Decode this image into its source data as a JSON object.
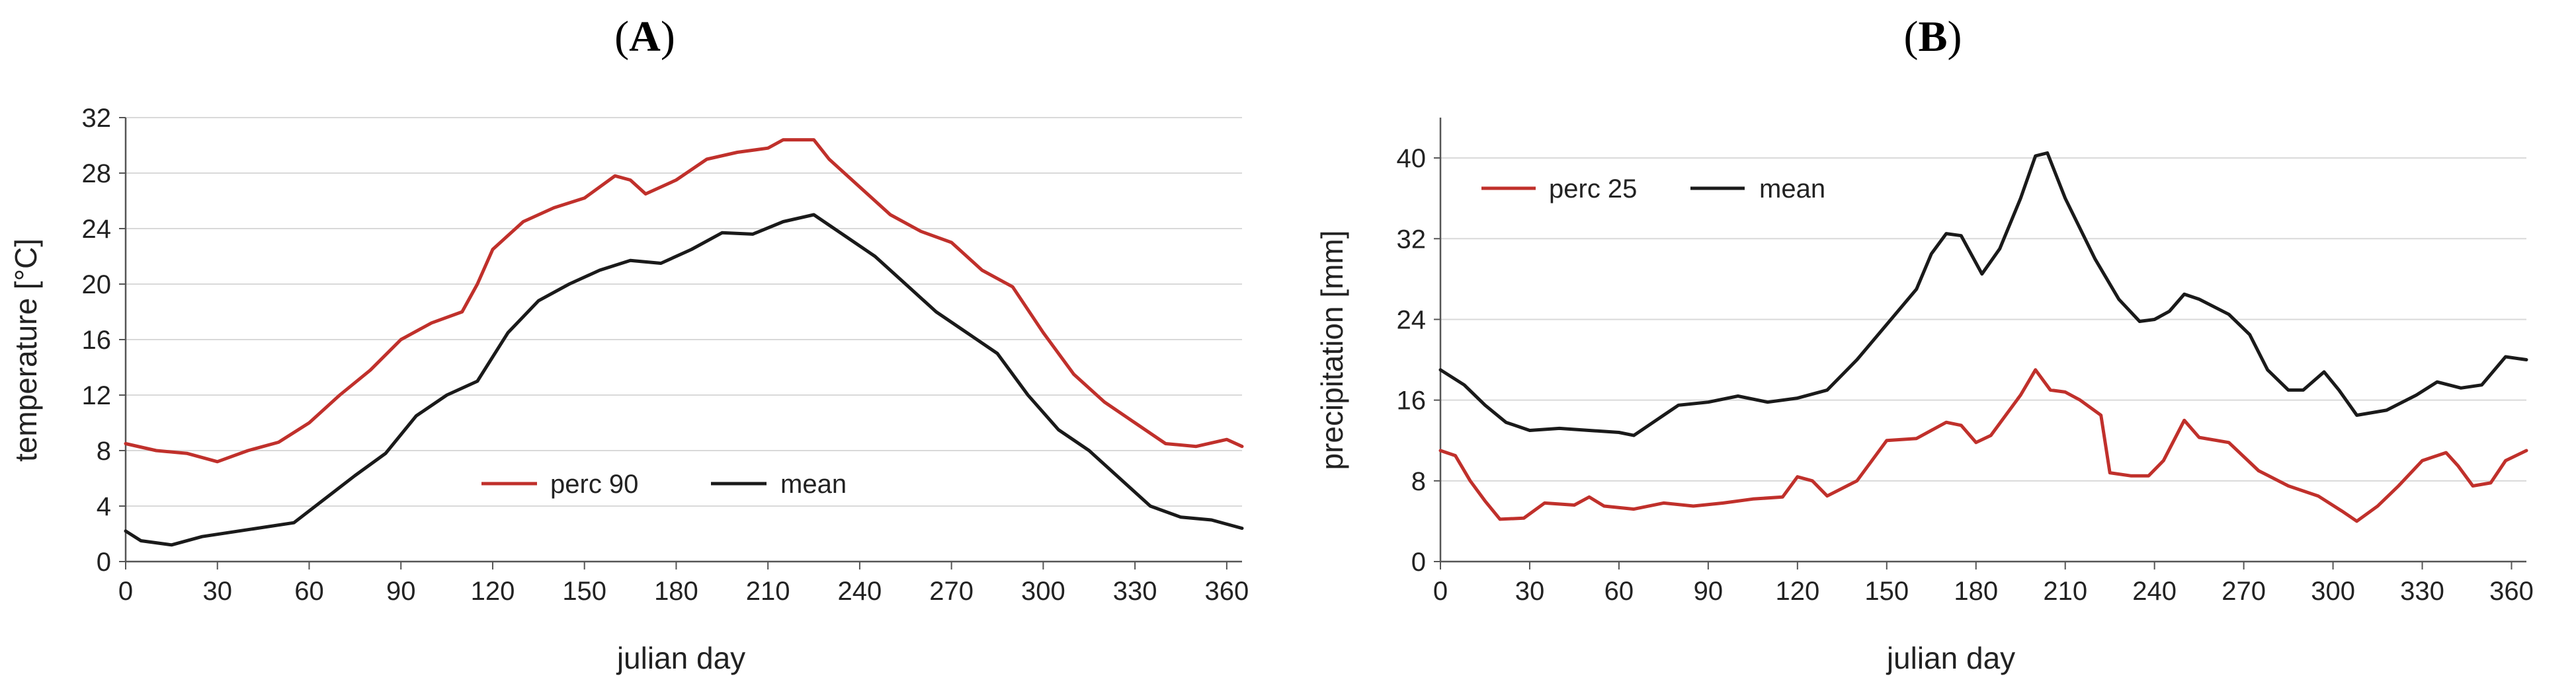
{
  "chart_data": [
    {
      "type": "line",
      "panel_label": "A",
      "xlabel": "julian day",
      "ylabel": "temperature [°C]",
      "xlim": [
        0,
        365
      ],
      "ylim": [
        0,
        32
      ],
      "xticks": [
        0,
        30,
        60,
        90,
        120,
        150,
        180,
        210,
        240,
        270,
        300,
        330,
        360
      ],
      "yticks": [
        0,
        4,
        8,
        12,
        16,
        20,
        24,
        28,
        32
      ],
      "grid": "horizontal",
      "legend_position": "lower-center",
      "series": [
        {
          "name": "perc 90",
          "color": "#c0302b",
          "points": [
            [
              0,
              8.5
            ],
            [
              10,
              8.0
            ],
            [
              20,
              7.8
            ],
            [
              30,
              7.2
            ],
            [
              40,
              8.0
            ],
            [
              50,
              8.6
            ],
            [
              60,
              10.0
            ],
            [
              70,
              12.0
            ],
            [
              80,
              13.8
            ],
            [
              90,
              16.0
            ],
            [
              100,
              17.2
            ],
            [
              110,
              18.0
            ],
            [
              115,
              20.0
            ],
            [
              120,
              22.5
            ],
            [
              130,
              24.5
            ],
            [
              140,
              25.5
            ],
            [
              150,
              26.2
            ],
            [
              160,
              27.8
            ],
            [
              165,
              27.5
            ],
            [
              170,
              26.5
            ],
            [
              180,
              27.5
            ],
            [
              190,
              29.0
            ],
            [
              200,
              29.5
            ],
            [
              210,
              29.8
            ],
            [
              215,
              30.4
            ],
            [
              225,
              30.4
            ],
            [
              230,
              29.0
            ],
            [
              240,
              27.0
            ],
            [
              250,
              25.0
            ],
            [
              260,
              23.8
            ],
            [
              270,
              23.0
            ],
            [
              280,
              21.0
            ],
            [
              290,
              19.8
            ],
            [
              300,
              16.5
            ],
            [
              310,
              13.5
            ],
            [
              320,
              11.5
            ],
            [
              330,
              10.0
            ],
            [
              340,
              8.5
            ],
            [
              350,
              8.3
            ],
            [
              360,
              8.8
            ],
            [
              365,
              8.3
            ]
          ]
        },
        {
          "name": "mean",
          "color": "#1a1a1a",
          "points": [
            [
              0,
              2.2
            ],
            [
              5,
              1.5
            ],
            [
              15,
              1.2
            ],
            [
              25,
              1.8
            ],
            [
              40,
              2.3
            ],
            [
              55,
              2.8
            ],
            [
              65,
              4.5
            ],
            [
              75,
              6.2
            ],
            [
              85,
              7.8
            ],
            [
              95,
              10.5
            ],
            [
              105,
              12.0
            ],
            [
              115,
              13.0
            ],
            [
              125,
              16.5
            ],
            [
              135,
              18.8
            ],
            [
              145,
              20.0
            ],
            [
              155,
              21.0
            ],
            [
              165,
              21.7
            ],
            [
              175,
              21.5
            ],
            [
              185,
              22.5
            ],
            [
              195,
              23.7
            ],
            [
              205,
              23.6
            ],
            [
              215,
              24.5
            ],
            [
              225,
              25.0
            ],
            [
              235,
              23.5
            ],
            [
              245,
              22.0
            ],
            [
              255,
              20.0
            ],
            [
              265,
              18.0
            ],
            [
              275,
              16.5
            ],
            [
              285,
              15.0
            ],
            [
              295,
              12.0
            ],
            [
              305,
              9.5
            ],
            [
              315,
              8.0
            ],
            [
              325,
              6.0
            ],
            [
              335,
              4.0
            ],
            [
              345,
              3.2
            ],
            [
              355,
              3.0
            ],
            [
              365,
              2.4
            ]
          ]
        }
      ]
    },
    {
      "type": "line",
      "panel_label": "B",
      "xlabel": "julian day",
      "ylabel": "precipitation [mm]",
      "xlim": [
        0,
        365
      ],
      "ylim": [
        0,
        44
      ],
      "xticks": [
        0,
        30,
        60,
        90,
        120,
        150,
        180,
        210,
        240,
        270,
        300,
        330,
        360
      ],
      "yticks": [
        0,
        8,
        16,
        24,
        32,
        40
      ],
      "grid": "horizontal",
      "legend_position": "top-left",
      "series": [
        {
          "name": "perc 25",
          "color": "#c0302b",
          "points": [
            [
              0,
              11.0
            ],
            [
              5,
              10.5
            ],
            [
              10,
              8.0
            ],
            [
              15,
              6.0
            ],
            [
              20,
              4.2
            ],
            [
              28,
              4.3
            ],
            [
              35,
              5.8
            ],
            [
              45,
              5.6
            ],
            [
              50,
              6.4
            ],
            [
              55,
              5.5
            ],
            [
              65,
              5.2
            ],
            [
              75,
              5.8
            ],
            [
              85,
              5.5
            ],
            [
              95,
              5.8
            ],
            [
              105,
              6.2
            ],
            [
              115,
              6.4
            ],
            [
              120,
              8.4
            ],
            [
              125,
              8.0
            ],
            [
              130,
              6.5
            ],
            [
              140,
              8.0
            ],
            [
              145,
              10.0
            ],
            [
              150,
              12.0
            ],
            [
              160,
              12.2
            ],
            [
              170,
              13.8
            ],
            [
              175,
              13.5
            ],
            [
              180,
              11.8
            ],
            [
              185,
              12.5
            ],
            [
              195,
              16.5
            ],
            [
              200,
              19.0
            ],
            [
              205,
              17.0
            ],
            [
              210,
              16.8
            ],
            [
              215,
              16.0
            ],
            [
              222,
              14.5
            ],
            [
              225,
              8.8
            ],
            [
              232,
              8.5
            ],
            [
              238,
              8.5
            ],
            [
              243,
              10.0
            ],
            [
              250,
              14.0
            ],
            [
              255,
              12.3
            ],
            [
              265,
              11.8
            ],
            [
              275,
              9.0
            ],
            [
              285,
              7.5
            ],
            [
              295,
              6.5
            ],
            [
              303,
              5.0
            ],
            [
              308,
              4.0
            ],
            [
              315,
              5.5
            ],
            [
              322,
              7.5
            ],
            [
              330,
              10.0
            ],
            [
              338,
              10.8
            ],
            [
              342,
              9.5
            ],
            [
              347,
              7.5
            ],
            [
              353,
              7.8
            ],
            [
              358,
              10.0
            ],
            [
              365,
              11.0
            ]
          ]
        },
        {
          "name": "mean",
          "color": "#1a1a1a",
          "points": [
            [
              0,
              19.0
            ],
            [
              8,
              17.5
            ],
            [
              15,
              15.5
            ],
            [
              22,
              13.8
            ],
            [
              30,
              13.0
            ],
            [
              40,
              13.2
            ],
            [
              50,
              13.0
            ],
            [
              60,
              12.8
            ],
            [
              65,
              12.5
            ],
            [
              75,
              14.5
            ],
            [
              80,
              15.5
            ],
            [
              90,
              15.8
            ],
            [
              100,
              16.4
            ],
            [
              110,
              15.8
            ],
            [
              120,
              16.2
            ],
            [
              130,
              17.0
            ],
            [
              140,
              20.0
            ],
            [
              150,
              23.5
            ],
            [
              160,
              27.0
            ],
            [
              165,
              30.5
            ],
            [
              170,
              32.5
            ],
            [
              175,
              32.3
            ],
            [
              182,
              28.5
            ],
            [
              188,
              31.0
            ],
            [
              195,
              36.0
            ],
            [
              200,
              40.2
            ],
            [
              204,
              40.5
            ],
            [
              210,
              36.0
            ],
            [
              220,
              30.0
            ],
            [
              228,
              26.0
            ],
            [
              235,
              23.8
            ],
            [
              240,
              24.0
            ],
            [
              245,
              24.8
            ],
            [
              250,
              26.5
            ],
            [
              255,
              26.0
            ],
            [
              265,
              24.5
            ],
            [
              272,
              22.5
            ],
            [
              278,
              19.0
            ],
            [
              285,
              17.0
            ],
            [
              290,
              17.0
            ],
            [
              297,
              18.8
            ],
            [
              302,
              17.0
            ],
            [
              308,
              14.5
            ],
            [
              318,
              15.0
            ],
            [
              328,
              16.5
            ],
            [
              335,
              17.8
            ],
            [
              343,
              17.2
            ],
            [
              350,
              17.5
            ],
            [
              358,
              20.3
            ],
            [
              365,
              20.0
            ]
          ]
        }
      ]
    }
  ]
}
